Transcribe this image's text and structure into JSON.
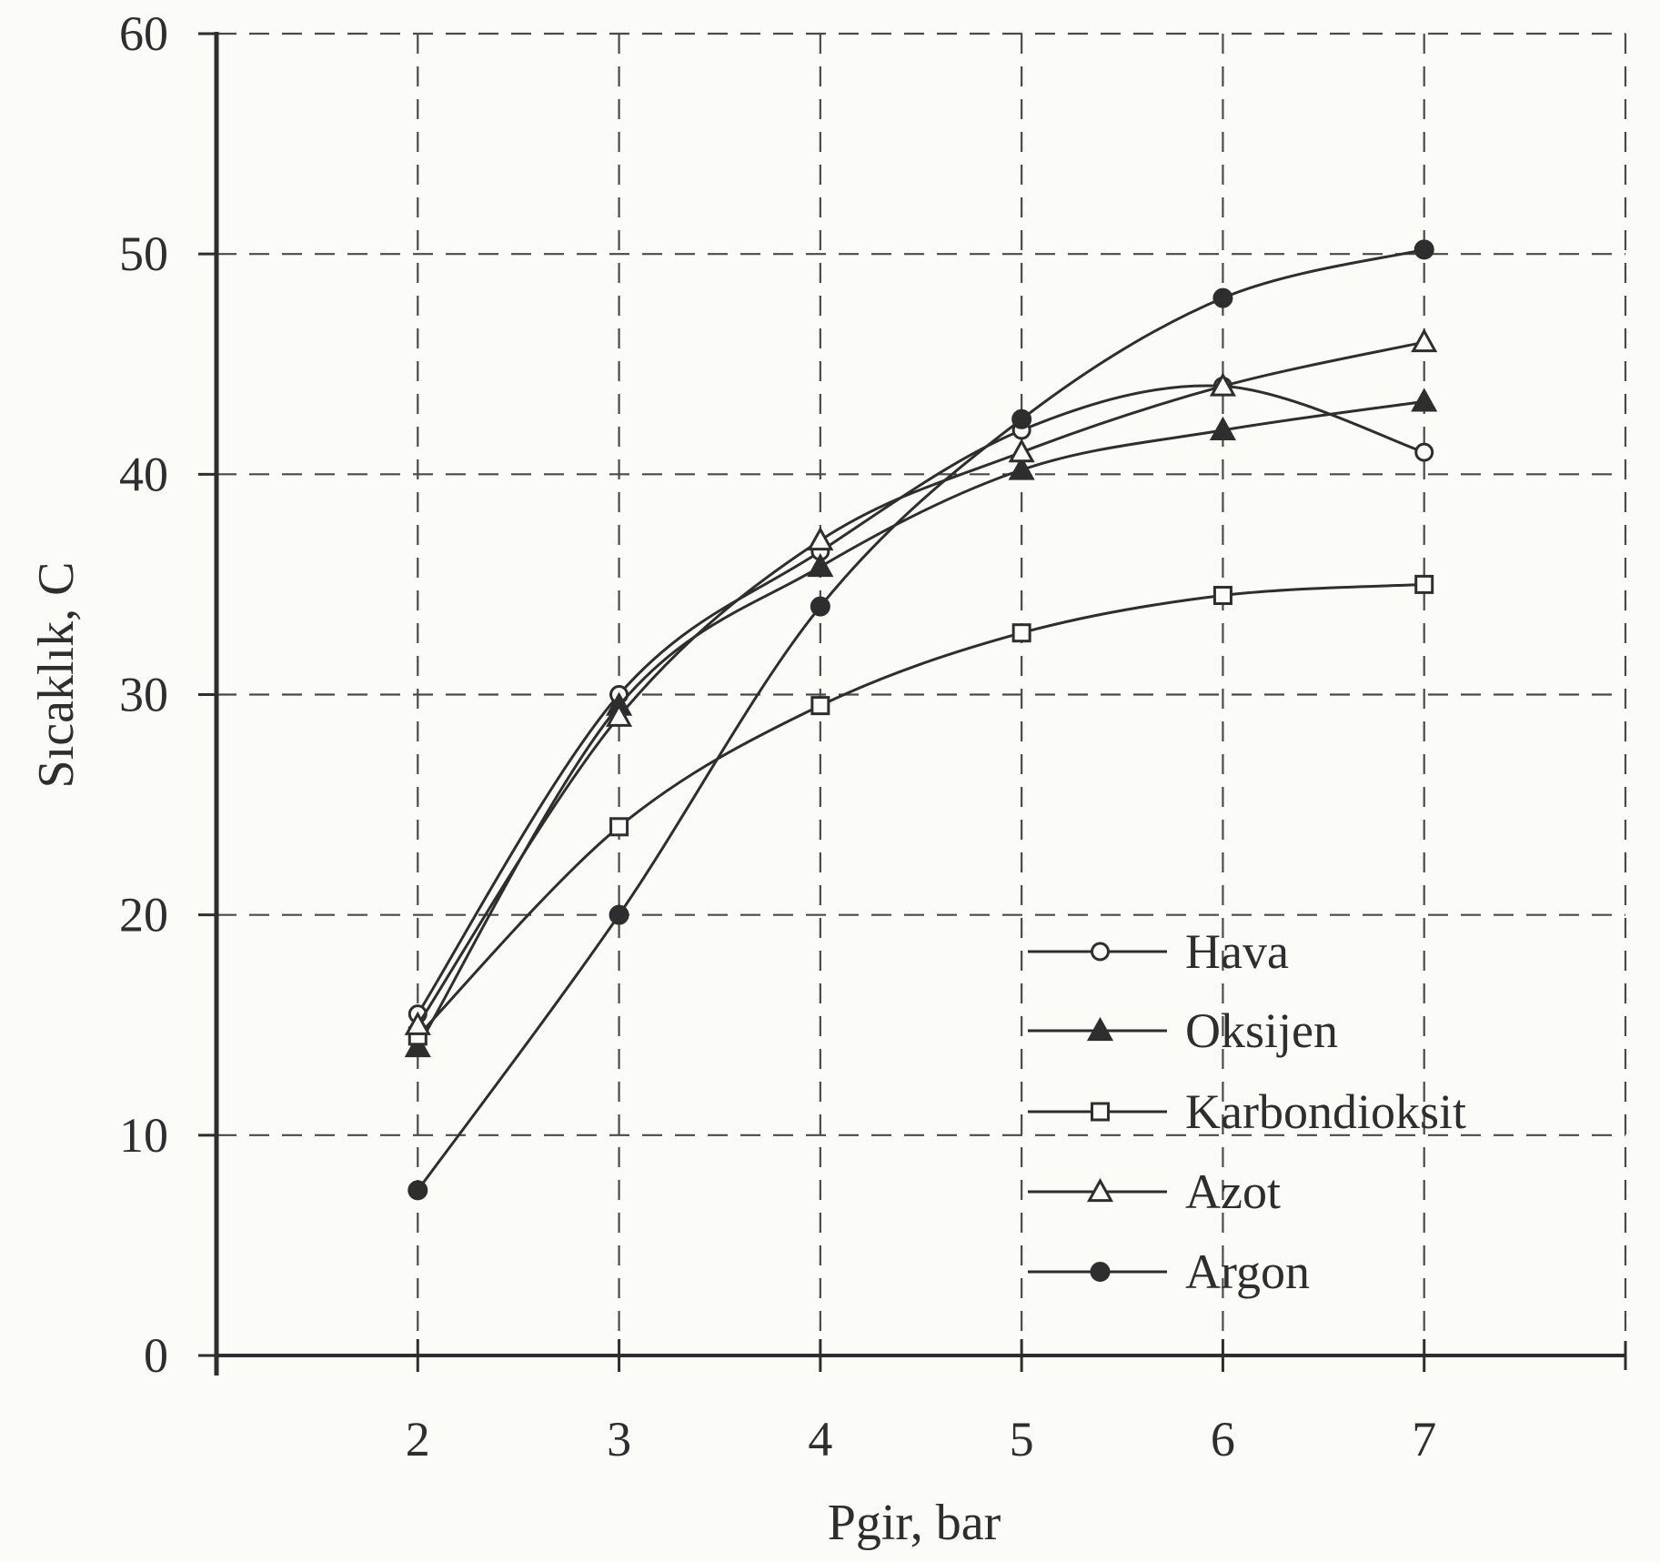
{
  "chart_data": {
    "type": "line",
    "xlabel": "Pgir, bar",
    "ylabel": "Sıcaklık, C",
    "x": [
      2,
      3,
      4,
      5,
      6,
      7
    ],
    "xlim": [
      1,
      8
    ],
    "ylim": [
      0,
      60
    ],
    "xticks": [
      "2",
      "3",
      "4",
      "5",
      "6",
      "7"
    ],
    "yticks": [
      "0",
      "10",
      "20",
      "30",
      "40",
      "50",
      "60"
    ],
    "grid": true,
    "legend_position": "bottom-right",
    "series": [
      {
        "name": "Hava",
        "marker": "circle-open",
        "values": [
          15.5,
          30,
          36.5,
          42,
          44,
          41
        ]
      },
      {
        "name": "Oksijen",
        "marker": "triangle-filled",
        "values": [
          14,
          29.5,
          35.8,
          40.2,
          42,
          43.3
        ]
      },
      {
        "name": "Karbondioksit",
        "marker": "square-open",
        "values": [
          14.5,
          24,
          29.5,
          32.8,
          34.5,
          35
        ]
      },
      {
        "name": "Azot",
        "marker": "triangle-open",
        "values": [
          15,
          29,
          37,
          41,
          44,
          46
        ]
      },
      {
        "name": "Argon",
        "marker": "circle-filled",
        "values": [
          7.5,
          20,
          34,
          42.5,
          48,
          50.2
        ]
      }
    ]
  }
}
